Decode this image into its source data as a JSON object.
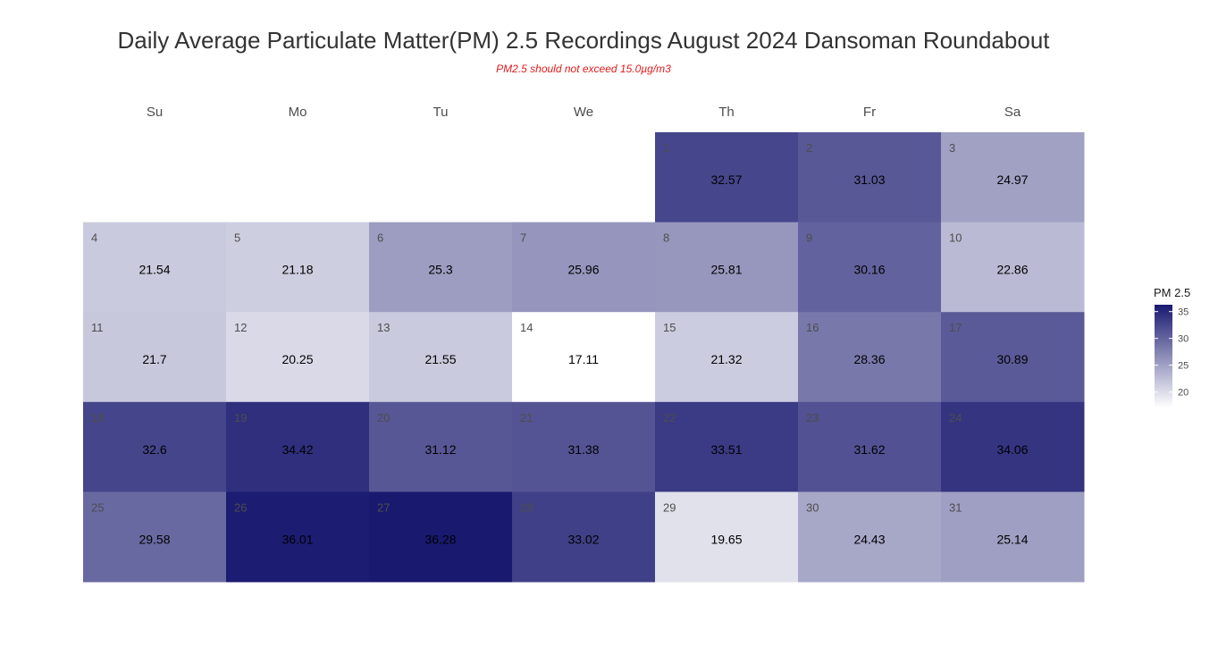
{
  "chart_data": {
    "type": "heatmap",
    "title": "Daily Average Particulate Matter(PM) 2.5 Recordings August 2024 Dansoman Roundabout",
    "subtitle": "PM2.5 should not exceed 15.0µg/m3",
    "weekdays": [
      "Su",
      "Mo",
      "Tu",
      "We",
      "Th",
      "Fr",
      "Sa"
    ],
    "first_weekday_index": 4,
    "days": [
      1,
      2,
      3,
      4,
      5,
      6,
      7,
      8,
      9,
      10,
      11,
      12,
      13,
      14,
      15,
      16,
      17,
      18,
      19,
      20,
      21,
      22,
      23,
      24,
      25,
      26,
      27,
      28,
      29,
      30,
      31
    ],
    "values": [
      32.57,
      31.03,
      24.97,
      21.54,
      21.18,
      25.3,
      25.96,
      25.81,
      30.16,
      22.86,
      21.7,
      20.25,
      21.55,
      17.11,
      21.32,
      28.36,
      30.89,
      32.6,
      34.42,
      31.12,
      31.38,
      33.51,
      31.62,
      34.06,
      29.58,
      36.01,
      36.28,
      33.02,
      19.65,
      24.43,
      25.14
    ],
    "legend": {
      "title": "PM 2.5",
      "ticks": [
        20,
        25,
        30,
        35
      ],
      "range": [
        17.11,
        36.28
      ],
      "color_low": "#ffffff",
      "color_high": "#191970"
    }
  }
}
